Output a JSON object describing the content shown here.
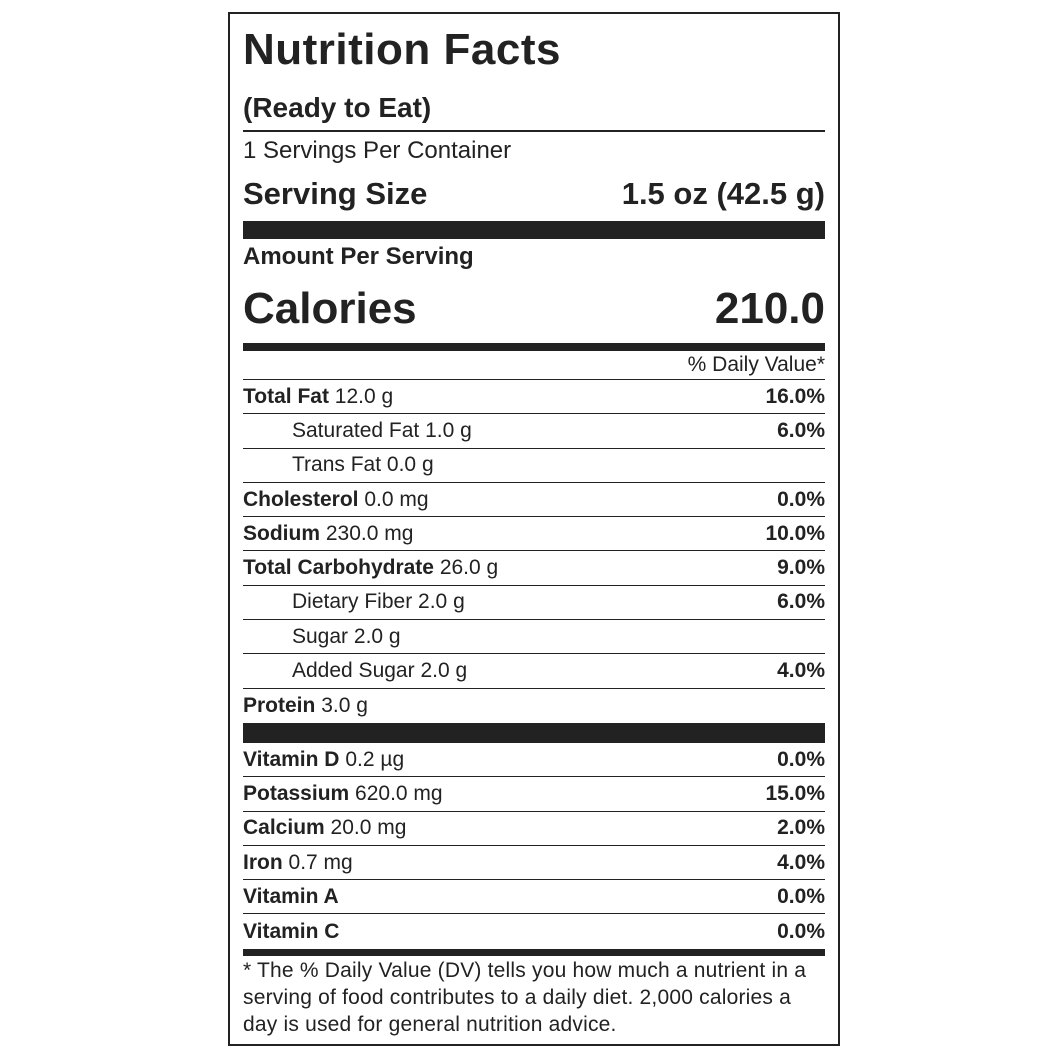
{
  "header": {
    "title": "Nutrition Facts",
    "subtitle": "(Ready to Eat)"
  },
  "servings_per_container": "1 Servings Per Container",
  "serving_size": {
    "label": "Serving Size",
    "value": "1.5 oz (42.5 g)"
  },
  "amount_per_serving": "Amount Per Serving",
  "calories": {
    "label": "Calories",
    "value": "210.0"
  },
  "daily_value_header": "% Daily Value*",
  "nutrients": [
    {
      "name": "Total Fat",
      "amount": "12.0 g",
      "dv": "16.0%",
      "sub": [
        {
          "name": "Saturated Fat",
          "amount": "1.0 g",
          "dv": "6.0%"
        },
        {
          "name": "Trans Fat",
          "amount": "0.0 g"
        }
      ]
    },
    {
      "name": "Cholesterol",
      "amount": "0.0 mg",
      "dv": "0.0%"
    },
    {
      "name": "Sodium",
      "amount": "230.0 mg",
      "dv": "10.0%"
    },
    {
      "name": "Total Carbohydrate",
      "amount": "26.0 g",
      "dv": "9.0%",
      "sub": [
        {
          "name": "Dietary Fiber",
          "amount": "2.0 g",
          "dv": "6.0%"
        },
        {
          "name": "Sugar",
          "amount": "2.0 g"
        },
        {
          "name": "Added Sugar",
          "amount": "2.0 g",
          "dv": "4.0%"
        }
      ]
    },
    {
      "name": "Protein",
      "amount": "3.0 g"
    }
  ],
  "vitamins": [
    {
      "name": "Vitamin D",
      "amount": "0.2 µg",
      "dv": "0.0%"
    },
    {
      "name": "Potassium",
      "amount": "620.0 mg",
      "dv": "15.0%"
    },
    {
      "name": "Calcium",
      "amount": "20.0 mg",
      "dv": "2.0%"
    },
    {
      "name": "Iron",
      "amount": "0.7 mg",
      "dv": "4.0%"
    },
    {
      "name": "Vitamin A",
      "dv": "0.0%"
    },
    {
      "name": "Vitamin C",
      "dv": "0.0%"
    }
  ],
  "footnote": "* The % Daily Value (DV) tells you how much a nutrient in a serving of food contributes to a daily diet. 2,000 calories a day is used for general nutrition advice."
}
